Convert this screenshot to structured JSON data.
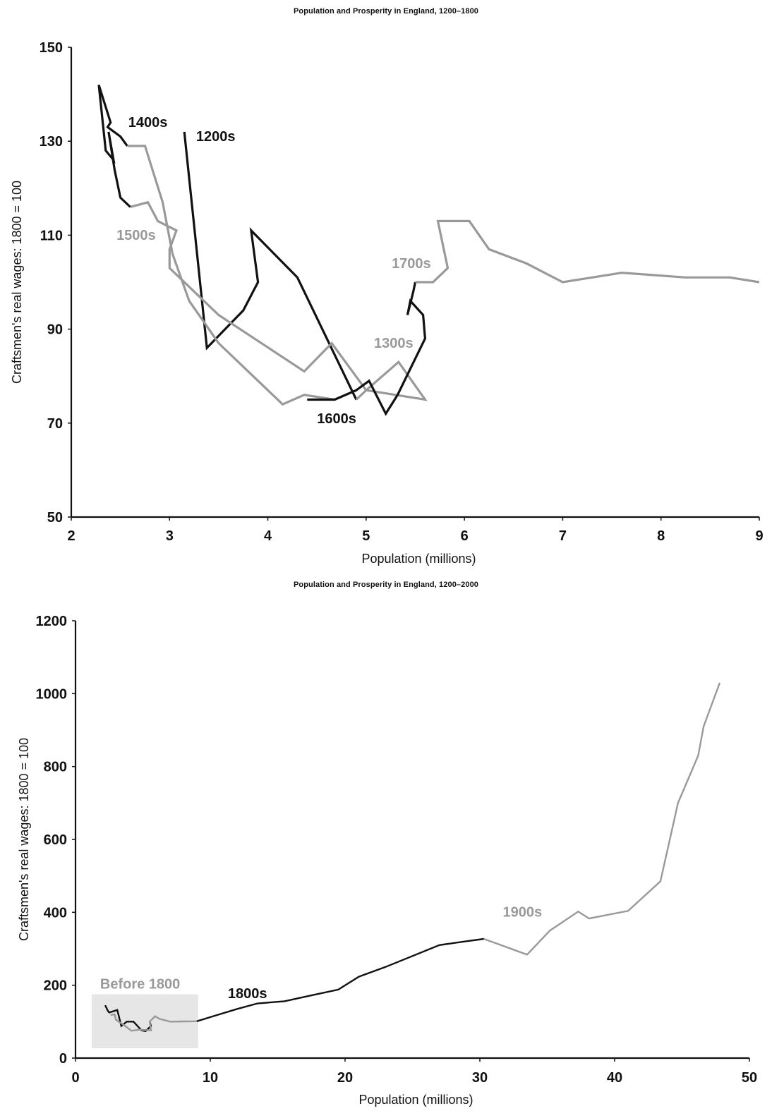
{
  "chart_data": [
    {
      "type": "line",
      "title": "Population and Prosperity in England, 1200–1800",
      "xlabel": "Population (millions)",
      "ylabel": "Craftsmen's real wages: 1800 = 100",
      "xlim": [
        2,
        9
      ],
      "ylim": [
        50,
        150
      ],
      "xticks": [
        2,
        3,
        4,
        5,
        6,
        7,
        8,
        9
      ],
      "yticks": [
        50,
        70,
        90,
        110,
        130,
        150
      ],
      "grid": false,
      "series": [
        {
          "name": "1200s",
          "color": "#111111",
          "points": [
            [
              3.15,
              132
            ],
            [
              3.38,
              86
            ],
            [
              3.75,
              94
            ],
            [
              3.9,
              100
            ],
            [
              3.83,
              111
            ],
            [
              4.3,
              101
            ],
            [
              4.9,
              75
            ]
          ]
        },
        {
          "name": "1300s",
          "color": "#999999",
          "points": [
            [
              4.9,
              75
            ],
            [
              5.0,
              77
            ],
            [
              5.6,
              75
            ],
            [
              5.33,
              83
            ],
            [
              5.0,
              77
            ],
            [
              4.65,
              87
            ],
            [
              4.37,
              81
            ],
            [
              3.5,
              93
            ],
            [
              3.0,
              103
            ],
            [
              3.0,
              107
            ],
            [
              3.07,
              111
            ],
            [
              2.88,
              113
            ],
            [
              2.78,
              117
            ],
            [
              2.6,
              116
            ]
          ]
        },
        {
          "name": "1400s",
          "color": "#111111",
          "points": [
            [
              2.6,
              116
            ],
            [
              2.5,
              118
            ],
            [
              2.44,
              124
            ],
            [
              2.38,
              132
            ],
            [
              2.43,
              126
            ],
            [
              2.35,
              128
            ],
            [
              2.28,
              142
            ],
            [
              2.4,
              134
            ],
            [
              2.37,
              133
            ],
            [
              2.5,
              131
            ],
            [
              2.57,
              129
            ]
          ]
        },
        {
          "name": "1500s",
          "color": "#999999",
          "points": [
            [
              2.57,
              129
            ],
            [
              2.75,
              129
            ],
            [
              2.93,
              117
            ],
            [
              3.03,
              106
            ],
            [
              3.2,
              96
            ],
            [
              3.5,
              87
            ],
            [
              4.15,
              74
            ],
            [
              4.37,
              76
            ],
            [
              4.68,
              75
            ],
            [
              4.9,
              77
            ]
          ]
        },
        {
          "name": "1600s",
          "color": "#111111",
          "points": [
            [
              4.4,
              75
            ],
            [
              4.68,
              75
            ],
            [
              4.9,
              77
            ],
            [
              5.03,
              79
            ],
            [
              5.2,
              72
            ],
            [
              5.32,
              76
            ],
            [
              5.6,
              88
            ],
            [
              5.58,
              93
            ],
            [
              5.45,
              96
            ],
            [
              5.42,
              93
            ],
            [
              5.48,
              98
            ],
            [
              5.5,
              100
            ]
          ]
        },
        {
          "name": "1700s",
          "color": "#999999",
          "points": [
            [
              5.5,
              100
            ],
            [
              5.68,
              100
            ],
            [
              5.83,
              103
            ],
            [
              5.73,
              113
            ],
            [
              6.05,
              113
            ],
            [
              6.25,
              107
            ],
            [
              6.63,
              104
            ],
            [
              7.0,
              100
            ],
            [
              7.6,
              102
            ],
            [
              8.25,
              101
            ],
            [
              8.7,
              101
            ],
            [
              9.0,
              100
            ]
          ]
        }
      ],
      "annotations": [
        {
          "text": "1400s",
          "x": 2.58,
          "y": 133,
          "color": "#111111"
        },
        {
          "text": "1200s",
          "x": 3.27,
          "y": 130,
          "color": "#111111"
        },
        {
          "text": "1500s",
          "x": 2.46,
          "y": 109,
          "color": "#999999"
        },
        {
          "text": "1700s",
          "x": 5.26,
          "y": 103,
          "color": "#999999"
        },
        {
          "text": "1300s",
          "x": 5.08,
          "y": 86,
          "color": "#999999"
        },
        {
          "text": "1600s",
          "x": 4.5,
          "y": 70,
          "color": "#111111"
        }
      ]
    },
    {
      "type": "line",
      "title": "Population and Prosperity in England, 1200–2000",
      "xlabel": "Population (millions)",
      "ylabel": "Craftsmen's real wages: 1800 = 100",
      "xlim": [
        0,
        50
      ],
      "ylim": [
        0,
        1200
      ],
      "xticks": [
        0,
        10,
        20,
        30,
        40,
        50
      ],
      "yticks": [
        0,
        200,
        400,
        600,
        800,
        1000,
        1200
      ],
      "grid": false,
      "highlight_box": {
        "label": "Before 1800",
        "x": [
          1.2,
          9.1
        ],
        "y": [
          27,
          175
        ],
        "color": "#e6e6e6",
        "label_color": "#999999"
      },
      "series": [
        {
          "name": "Before 1800 (dark)",
          "color": "#111111",
          "points": [
            [
              2.2,
              145
            ],
            [
              2.4,
              130
            ],
            [
              2.5,
              125
            ],
            [
              3.1,
              132
            ],
            [
              3.4,
              88
            ],
            [
              3.8,
              100
            ],
            [
              4.3,
              100
            ],
            [
              4.9,
              76
            ],
            [
              5.2,
              74
            ],
            [
              5.6,
              88
            ],
            [
              5.5,
              100
            ]
          ]
        },
        {
          "name": "Before 1800 (grey)",
          "color": "#999999",
          "points": [
            [
              2.6,
              118
            ],
            [
              2.9,
              120
            ],
            [
              3.0,
              105
            ],
            [
              3.5,
              93
            ],
            [
              4.15,
              75
            ],
            [
              4.7,
              78
            ],
            [
              5.6,
              76
            ],
            [
              5.5,
              100
            ],
            [
              5.9,
              115
            ],
            [
              6.2,
              108
            ],
            [
              7.0,
              100
            ],
            [
              9.0,
              101
            ]
          ]
        },
        {
          "name": "1800s",
          "color": "#111111",
          "points": [
            [
              9.0,
              101
            ],
            [
              10.5,
              118
            ],
            [
              12.0,
              135
            ],
            [
              13.5,
              150
            ],
            [
              15.5,
              156
            ],
            [
              17.5,
              172
            ],
            [
              19.5,
              188
            ],
            [
              21.0,
              223
            ],
            [
              23.0,
              250
            ],
            [
              25.0,
              280
            ],
            [
              27.0,
              310
            ],
            [
              28.5,
              318
            ],
            [
              30.3,
              327
            ]
          ]
        },
        {
          "name": "1900s",
          "color": "#999999",
          "points": [
            [
              30.3,
              327
            ],
            [
              33.5,
              284
            ],
            [
              35.2,
              350
            ],
            [
              37.3,
              402
            ],
            [
              38.1,
              383
            ],
            [
              41.0,
              404
            ],
            [
              43.4,
              485
            ],
            [
              44.7,
              700
            ],
            [
              46.2,
              830
            ],
            [
              46.6,
              910
            ],
            [
              47.8,
              1030
            ]
          ]
        }
      ],
      "annotations": [
        {
          "text": "1800s",
          "x": 11.3,
          "y": 165,
          "color": "#111111"
        },
        {
          "text": "1900s",
          "x": 31.7,
          "y": 388,
          "color": "#999999"
        }
      ]
    }
  ]
}
